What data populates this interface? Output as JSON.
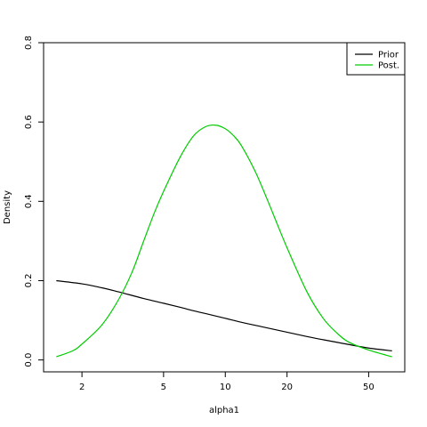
{
  "chart_data": {
    "type": "line",
    "xlabel": "alpha1",
    "ylabel": "Density",
    "xscale": "log",
    "xlim": [
      1.3,
      75
    ],
    "ylim": [
      -0.03,
      0.8
    ],
    "xticks": [
      2,
      5,
      10,
      20,
      50
    ],
    "yticks": [
      0.0,
      0.2,
      0.4,
      0.6,
      0.8
    ],
    "grid": false,
    "legend": "top-right",
    "series": [
      {
        "name": "Prior",
        "color": "#000000",
        "x": [
          1.5,
          2,
          2.5,
          3,
          4,
          5,
          6,
          7,
          8,
          10,
          12,
          15,
          20,
          25,
          30,
          40,
          50,
          65
        ],
        "y": [
          0.2,
          0.192,
          0.182,
          0.172,
          0.155,
          0.143,
          0.133,
          0.124,
          0.117,
          0.105,
          0.095,
          0.084,
          0.07,
          0.059,
          0.051,
          0.039,
          0.03,
          0.023
        ]
      },
      {
        "name": "Post.",
        "color": "#00cc00",
        "x": [
          1.5,
          1.8,
          2,
          2.5,
          3,
          3.5,
          4,
          4.5,
          5,
          6,
          7,
          8,
          9,
          10,
          11,
          12,
          14,
          16,
          18,
          20,
          25,
          30,
          35,
          40,
          50,
          65
        ],
        "y": [
          0.008,
          0.023,
          0.04,
          0.088,
          0.15,
          0.22,
          0.3,
          0.37,
          0.425,
          0.51,
          0.565,
          0.588,
          0.592,
          0.583,
          0.565,
          0.54,
          0.475,
          0.405,
          0.34,
          0.283,
          0.172,
          0.105,
          0.068,
          0.045,
          0.025,
          0.008
        ]
      }
    ]
  }
}
